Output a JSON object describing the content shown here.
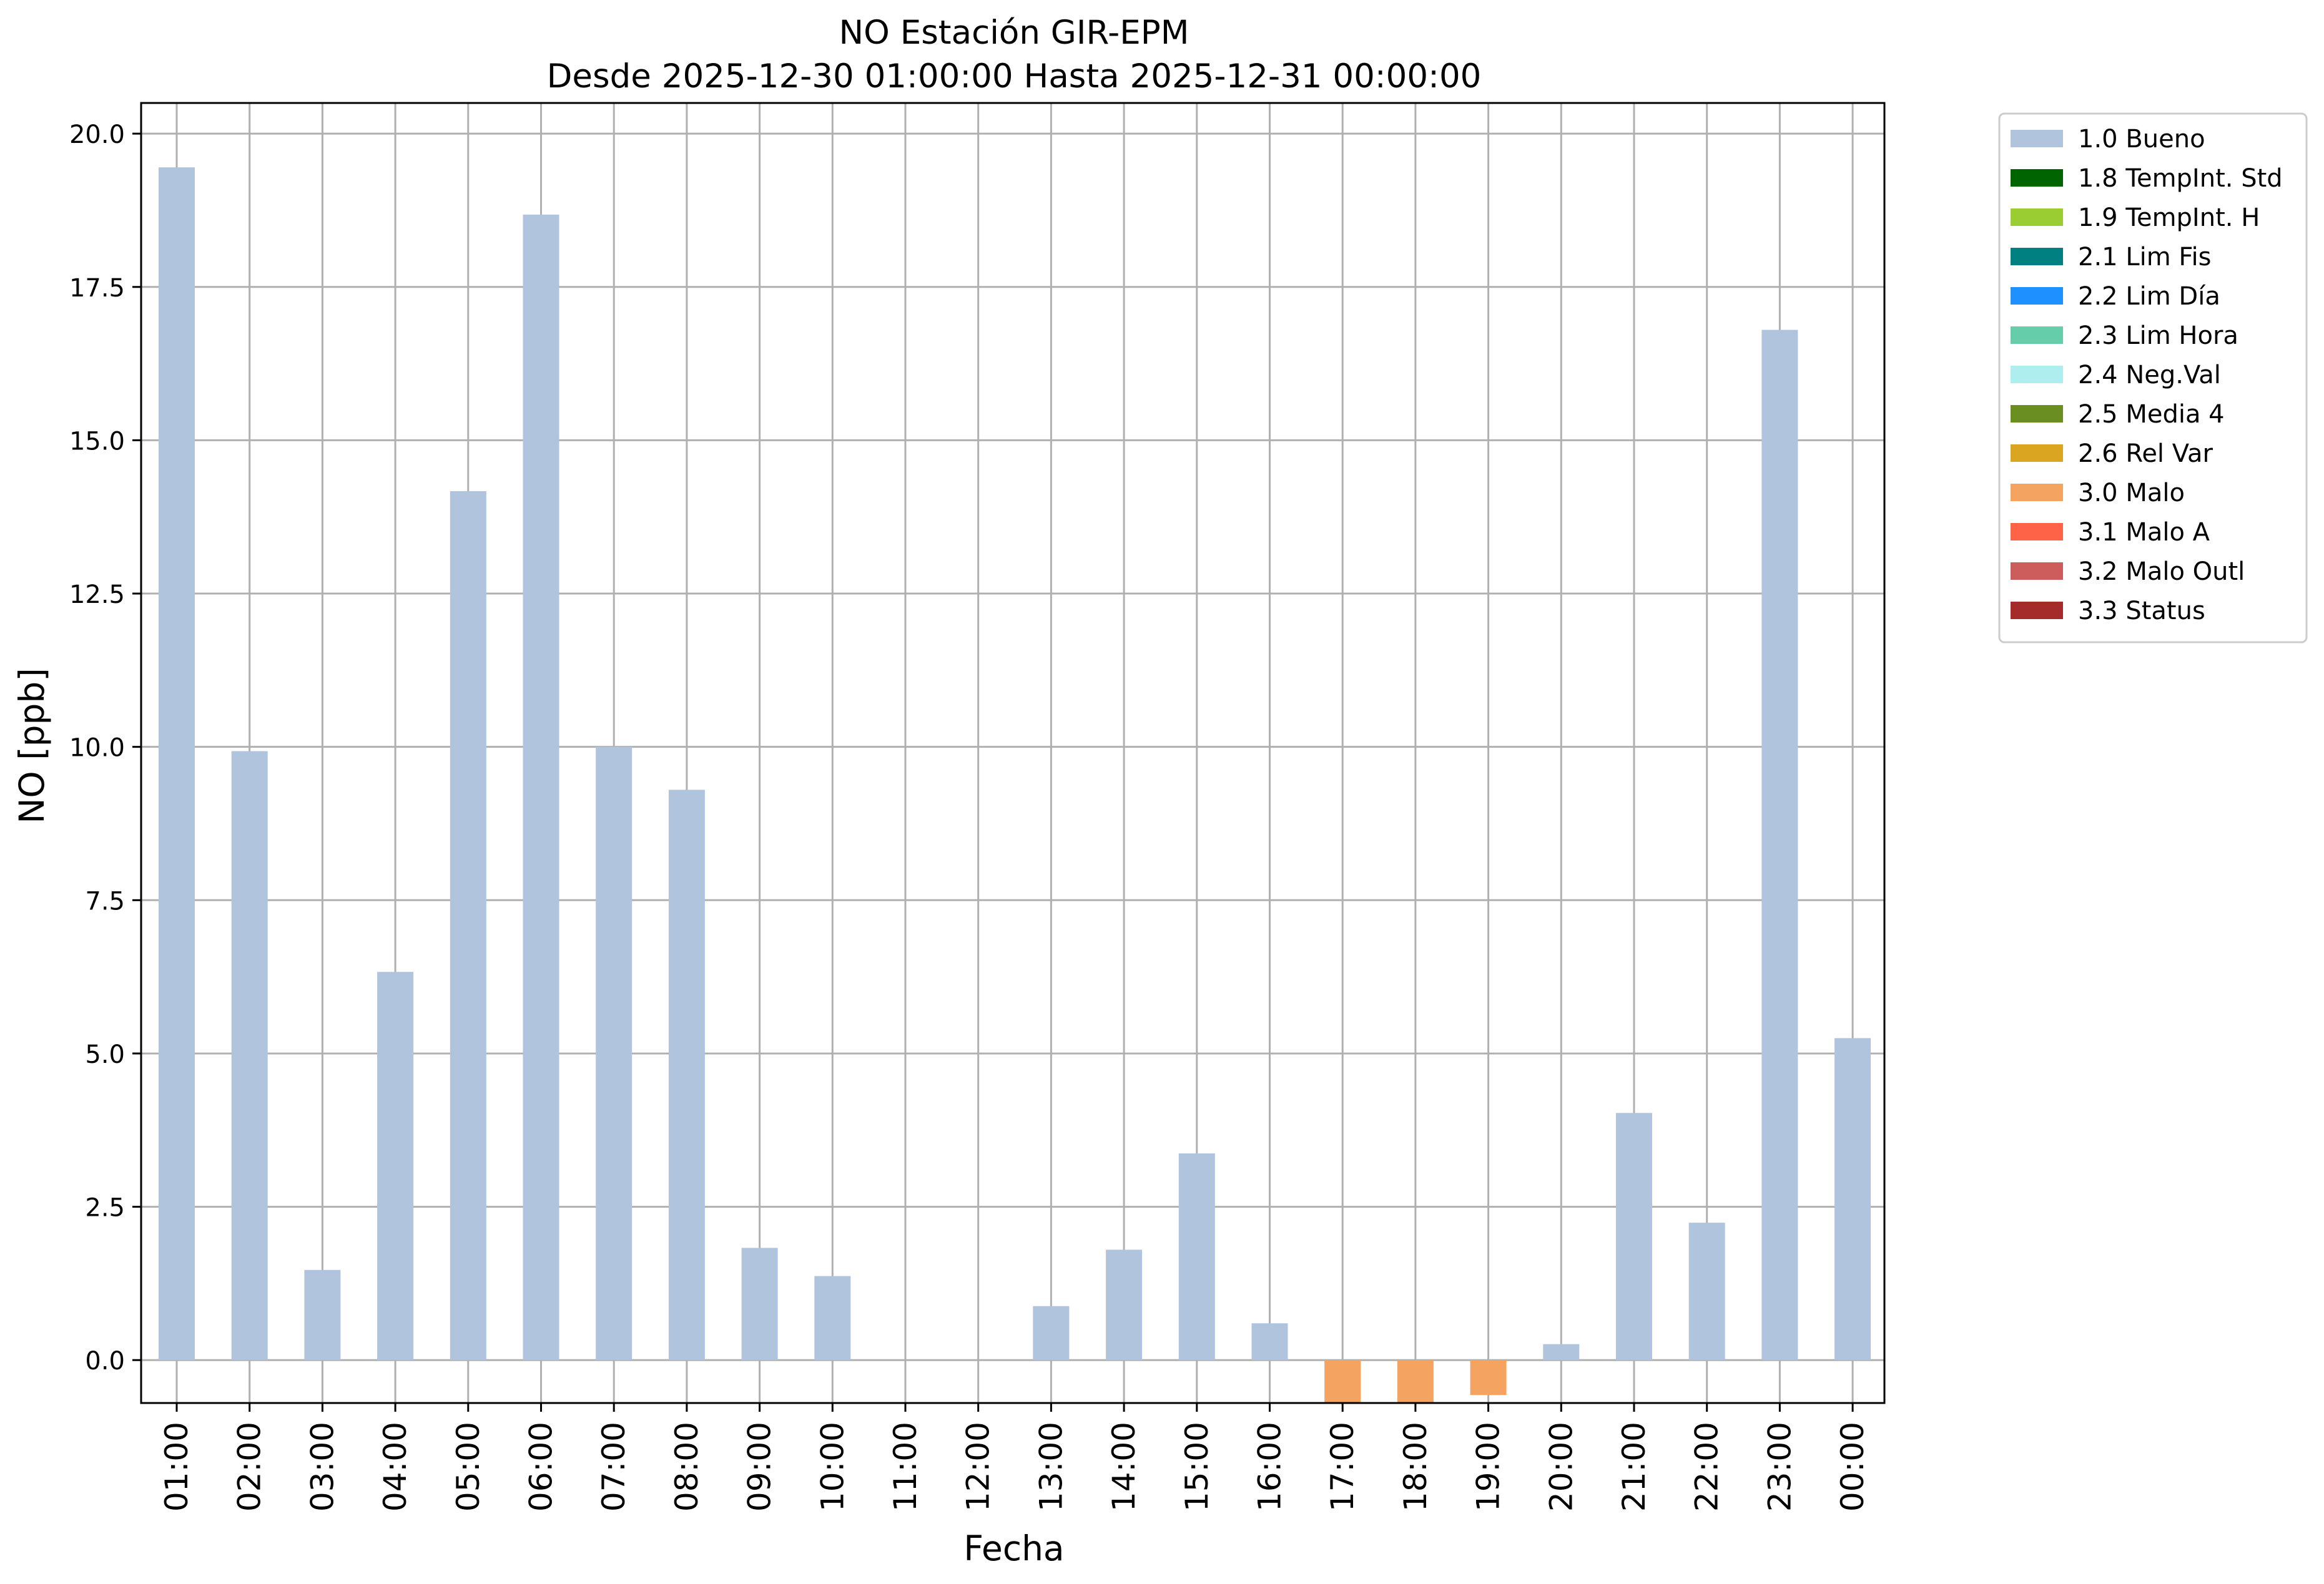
{
  "chart_data": {
    "type": "bar",
    "title": "NO Estación GIR-EPM",
    "subtitle": "Desde 2025-12-30 01:00:00 Hasta 2025-12-31 00:00:00",
    "xlabel": "Fecha",
    "ylabel": "NO [ppb]",
    "ylim": [
      -0.7,
      20.5
    ],
    "yticks": [
      "0.0",
      "2.5",
      "5.0",
      "7.5",
      "10.0",
      "12.5",
      "15.0",
      "17.5",
      "20.0"
    ],
    "grid": true,
    "legend_position": "outside-top-right",
    "categories": [
      "01:00",
      "02:00",
      "03:00",
      "04:00",
      "05:00",
      "06:00",
      "07:00",
      "08:00",
      "09:00",
      "10:00",
      "11:00",
      "12:00",
      "13:00",
      "14:00",
      "15:00",
      "16:00",
      "17:00",
      "18:00",
      "19:00",
      "20:00",
      "21:00",
      "22:00",
      "23:00",
      "00:00"
    ],
    "series": [
      {
        "name": "1.0 Bueno",
        "color": "#b0c4de",
        "values": [
          19.45,
          9.93,
          1.47,
          6.33,
          14.17,
          18.68,
          10.0,
          9.3,
          1.83,
          1.37,
          null,
          null,
          0.88,
          1.8,
          3.37,
          0.6,
          null,
          null,
          null,
          0.26,
          4.03,
          2.24,
          16.8,
          5.25
        ]
      },
      {
        "name": "3.0 Malo",
        "color": "#f4a460",
        "values": [
          null,
          null,
          null,
          null,
          null,
          null,
          null,
          null,
          null,
          null,
          null,
          null,
          null,
          null,
          null,
          null,
          -0.7,
          -0.7,
          -0.57,
          null,
          null,
          null,
          null,
          null
        ]
      }
    ],
    "legend": [
      {
        "label": "1.0 Bueno",
        "color": "#b0c4de"
      },
      {
        "label": "1.8 TempInt. Std",
        "color": "#006400"
      },
      {
        "label": "1.9 TempInt. H",
        "color": "#9acd32"
      },
      {
        "label": "2.1 Lim Fis",
        "color": "#008080"
      },
      {
        "label": "2.2 Lim Día",
        "color": "#1e90ff"
      },
      {
        "label": "2.3 Lim Hora",
        "color": "#66cdaa"
      },
      {
        "label": "2.4 Neg.Val",
        "color": "#afeeee"
      },
      {
        "label": "2.5 Media 4",
        "color": "#6b8e23"
      },
      {
        "label": "2.6 Rel Var",
        "color": "#daa520"
      },
      {
        "label": "3.0 Malo",
        "color": "#f4a460"
      },
      {
        "label": "3.1 Malo A",
        "color": "#ff6347"
      },
      {
        "label": "3.2 Malo Outl",
        "color": "#cd5c5c"
      },
      {
        "label": "3.3 Status",
        "color": "#a52a2a"
      }
    ]
  }
}
